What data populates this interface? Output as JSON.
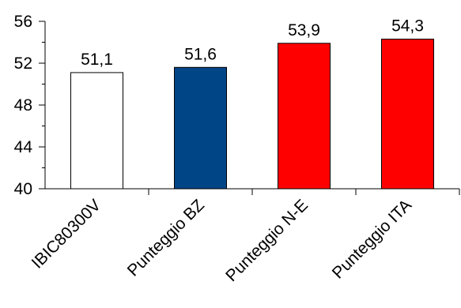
{
  "chart_data": {
    "type": "bar",
    "title": "",
    "xlabel": "",
    "ylabel": "",
    "categories": [
      "IBIC80300V",
      "Punteggio BZ",
      "Punteggio N-E",
      "Punteggio ITA"
    ],
    "values": [
      51.1,
      51.6,
      53.9,
      54.3
    ],
    "value_labels": [
      "51,1",
      "51,6",
      "53,9",
      "54,3"
    ],
    "bar_colors": [
      "#ffffff",
      "#004586",
      "#ff0000",
      "#ff0000"
    ],
    "ylim": [
      40,
      56
    ],
    "yticks": [
      40,
      44,
      48,
      52,
      56
    ],
    "ytick_labels": [
      "40",
      "44",
      "48",
      "52",
      "56"
    ],
    "minor_tick_step": 2,
    "grid": false,
    "legend": "none"
  }
}
